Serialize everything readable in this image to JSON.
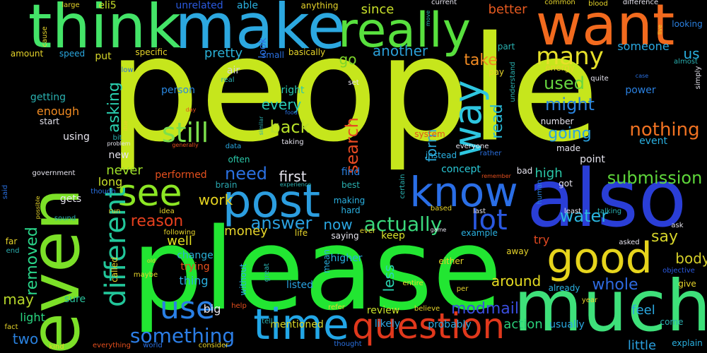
{
  "words": [
    {
      "text": "people",
      "color": "#c6e61c"
    },
    {
      "text": "please",
      "color": "#22e632"
    },
    {
      "text": "make",
      "color": "#2ca8e0"
    },
    {
      "text": "think",
      "color": "#44e468"
    },
    {
      "text": "want",
      "color": "#f26a1e"
    },
    {
      "text": "also",
      "color": "#2a3ed6"
    },
    {
      "text": "much",
      "color": "#3ee07a"
    },
    {
      "text": "really",
      "color": "#58e03e"
    },
    {
      "text": "even",
      "color": "#7ce028"
    },
    {
      "text": "post",
      "color": "#2c9ee0"
    },
    {
      "text": "time",
      "color": "#22a6e6"
    },
    {
      "text": "know",
      "color": "#2a6ee6"
    },
    {
      "text": "question",
      "color": "#e0381c"
    },
    {
      "text": "good",
      "color": "#e6d41c"
    },
    {
      "text": "see",
      "color": "#8ce624"
    },
    {
      "text": "way",
      "color": "#2ec6e0"
    },
    {
      "text": "lot",
      "color": "#2a58e0"
    },
    {
      "text": "use",
      "color": "#2a80e6"
    },
    {
      "text": "still",
      "color": "#7ce04c"
    },
    {
      "text": "many",
      "color": "#e6e02a"
    },
    {
      "text": "different",
      "color": "#22c69a"
    },
    {
      "text": "something",
      "color": "#2c7ee6"
    },
    {
      "text": "actually",
      "color": "#3ad87c"
    },
    {
      "text": "nothing",
      "color": "#f07222"
    },
    {
      "text": "submission",
      "color": "#5ed63a"
    },
    {
      "text": "answer",
      "color": "#2aa0e0"
    },
    {
      "text": "removed",
      "color": "#2ad68a"
    },
    {
      "text": "modmail",
      "color": "#3a4ee0"
    },
    {
      "text": "read",
      "color": "#2ab8d6"
    },
    {
      "text": "search",
      "color": "#e64a22"
    },
    {
      "text": "water",
      "color": "#2ab6e0"
    },
    {
      "text": "might",
      "color": "#2a84e0"
    },
    {
      "text": "used",
      "color": "#66d640"
    },
    {
      "text": "asking",
      "color": "#2ad0b0"
    },
    {
      "text": "whole",
      "color": "#2e6ae0"
    },
    {
      "text": "body",
      "color": "#d6d02a"
    },
    {
      "text": "say",
      "color": "#d6d42a"
    },
    {
      "text": "need",
      "color": "#2a70e0"
    },
    {
      "text": "reason",
      "color": "#e6401e"
    },
    {
      "text": "work",
      "color": "#e6d420"
    },
    {
      "text": "another",
      "color": "#2a9ed6"
    },
    {
      "text": "going",
      "color": "#2aa2e0"
    },
    {
      "text": "back",
      "color": "#b6e02a"
    },
    {
      "text": "every",
      "color": "#2acab6"
    },
    {
      "text": "first",
      "color": "#e6e4ee"
    },
    {
      "text": "take",
      "color": "#f08a22"
    },
    {
      "text": "around",
      "color": "#e6dc22"
    },
    {
      "text": "us",
      "color": "#2ab0e0"
    },
    {
      "text": "go",
      "color": "#7cd62a"
    },
    {
      "text": "pretty",
      "color": "#2ab0d6"
    },
    {
      "text": "form",
      "color": "#2aa6d6"
    },
    {
      "text": "better",
      "color": "#e65a20"
    },
    {
      "text": "since",
      "color": "#c8e02a"
    },
    {
      "text": "someone",
      "color": "#2aa8e0"
    },
    {
      "text": "never",
      "color": "#9ee02a"
    },
    {
      "text": "long",
      "color": "#c8e02a"
    },
    {
      "text": "well",
      "color": "#e6e022"
    },
    {
      "text": "now",
      "color": "#2aa6e0"
    },
    {
      "text": "keep",
      "color": "#d8e02a"
    },
    {
      "text": "less",
      "color": "#2ad6b2"
    },
    {
      "text": "high",
      "color": "#2ac8a8"
    },
    {
      "text": "may",
      "color": "#b6d62a"
    },
    {
      "text": "two",
      "color": "#2a82e0"
    },
    {
      "text": "action",
      "color": "#2ad07a"
    },
    {
      "text": "little",
      "color": "#2aa0e0"
    },
    {
      "text": "feel",
      "color": "#2aa8e0"
    },
    {
      "text": "money",
      "color": "#e6d42a"
    },
    {
      "text": "try",
      "color": "#e64a22"
    },
    {
      "text": "concept",
      "color": "#2ac8d6"
    },
    {
      "text": "review",
      "color": "#c8e02a"
    },
    {
      "text": "likely",
      "color": "#2aa2e0"
    },
    {
      "text": "probably",
      "color": "#2aa8e0"
    },
    {
      "text": "usually",
      "color": "#2aa8e0"
    },
    {
      "text": "mentioned",
      "color": "#d6d62a"
    },
    {
      "text": "listed",
      "color": "#2aa2e0"
    },
    {
      "text": "thing",
      "color": "#2ab0e0"
    },
    {
      "text": "big",
      "color": "#e6e4ee"
    },
    {
      "text": "sure",
      "color": "#2ac09a"
    },
    {
      "text": "light",
      "color": "#2ad680"
    },
    {
      "text": "trying",
      "color": "#e6501e"
    },
    {
      "text": "change",
      "color": "#2ab0d6"
    },
    {
      "text": "performed",
      "color": "#e6501e"
    },
    {
      "text": "enough",
      "color": "#f08a22"
    },
    {
      "text": "person",
      "color": "#2a88e0"
    },
    {
      "text": "right",
      "color": "#2ac8b0"
    },
    {
      "text": "air",
      "color": "#d6d6d6"
    },
    {
      "text": "look",
      "color": "#2a70e0"
    },
    {
      "text": "able",
      "color": "#2ab0e0"
    },
    {
      "text": "unrelated",
      "color": "#2a5ae0"
    },
    {
      "text": "eli5",
      "color": "#c8e02a"
    },
    {
      "text": "large",
      "color": "#e6d42a"
    },
    {
      "text": "anything",
      "color": "#e6d42a"
    },
    {
      "text": "cause",
      "color": "#e6d42a"
    },
    {
      "text": "amount",
      "color": "#e6d42a"
    },
    {
      "text": "speed",
      "color": "#2aa8e0"
    },
    {
      "text": "put",
      "color": "#d6d62a"
    },
    {
      "text": "specific",
      "color": "#e6d42a"
    },
    {
      "text": "small",
      "color": "#2a70e0"
    },
    {
      "text": "basically",
      "color": "#e6d42a"
    },
    {
      "text": "getting",
      "color": "#2ab0b0"
    },
    {
      "text": "start",
      "color": "#e6e4ee"
    },
    {
      "text": "using",
      "color": "#e6e4ee"
    },
    {
      "text": "new",
      "color": "#e6e4ee"
    },
    {
      "text": "often",
      "color": "#2ac8a8"
    },
    {
      "text": "data",
      "color": "#2aa8e0"
    },
    {
      "text": "brain",
      "color": "#2aa8b0"
    },
    {
      "text": "find",
      "color": "#2a80e0"
    },
    {
      "text": "best",
      "color": "#2ab0b0"
    },
    {
      "text": "making",
      "color": "#2ab0e0"
    },
    {
      "text": "hard",
      "color": "#2ab0e0"
    },
    {
      "text": "gets",
      "color": "#e6e4ee"
    },
    {
      "text": "government",
      "color": "#e6e4ee"
    },
    {
      "text": "run",
      "color": "#e6d42a"
    },
    {
      "text": "idea",
      "color": "#e6d42a"
    },
    {
      "text": "following",
      "color": "#e6d42a"
    },
    {
      "text": "sound",
      "color": "#2ab0b0"
    },
    {
      "text": "far",
      "color": "#e6d42a"
    },
    {
      "text": "end",
      "color": "#2ab0b0"
    },
    {
      "text": "called",
      "color": "#e6d42a"
    },
    {
      "text": "maybe",
      "color": "#e6d42a"
    },
    {
      "text": "without",
      "color": "#2ab0e0"
    },
    {
      "text": "great",
      "color": "#2ab0b0"
    },
    {
      "text": "help",
      "color": "#e6501e"
    },
    {
      "text": "tell",
      "color": "#2ab0b0"
    },
    {
      "text": "refer",
      "color": "#e6d42a"
    },
    {
      "text": "believe",
      "color": "#e6d42a"
    },
    {
      "text": "entire",
      "color": "#e6d42a"
    },
    {
      "text": "per",
      "color": "#e6d42a"
    },
    {
      "text": "either",
      "color": "#e6d42a"
    },
    {
      "text": "higher",
      "color": "#2ab0e0"
    },
    {
      "text": "saying",
      "color": "#e6e4ee"
    },
    {
      "text": "life",
      "color": "#e6d42a"
    },
    {
      "text": "ever",
      "color": "#e6d42a"
    },
    {
      "text": "mean",
      "color": "#2ab0e0"
    },
    {
      "text": "example",
      "color": "#2ab0e0"
    },
    {
      "text": "away",
      "color": "#e6d42a"
    },
    {
      "text": "asked",
      "color": "#e6e4ee"
    },
    {
      "text": "already",
      "color": "#2ab0e0"
    },
    {
      "text": "give",
      "color": "#e6d42a"
    },
    {
      "text": "come",
      "color": "#2ab0b0"
    },
    {
      "text": "explain",
      "color": "#2ab0e0"
    },
    {
      "text": "year",
      "color": "#e6d42a"
    },
    {
      "text": "objective",
      "color": "#2a5ae0"
    },
    {
      "text": "ask",
      "color": "#e6e4ee"
    },
    {
      "text": "least",
      "color": "#e6e4ee"
    },
    {
      "text": "talking",
      "color": "#2ab0b0"
    },
    {
      "text": "last",
      "color": "#e6e4ee"
    },
    {
      "text": "based",
      "color": "#e6d42a"
    },
    {
      "text": "got",
      "color": "#e6e4ee"
    },
    {
      "text": "bad",
      "color": "#e6e4ee"
    },
    {
      "text": "point",
      "color": "#e6e4ee"
    },
    {
      "text": "made",
      "color": "#e6e4ee"
    },
    {
      "text": "event",
      "color": "#2ab0e0"
    },
    {
      "text": "human",
      "color": "#2a80e0"
    },
    {
      "text": "remember",
      "color": "#e6501e"
    },
    {
      "text": "rather",
      "color": "#2a70e0"
    },
    {
      "text": "everyone",
      "color": "#e6e4ee"
    },
    {
      "text": "instead",
      "color": "#2ab0e0"
    },
    {
      "text": "system",
      "color": "#e6501e"
    },
    {
      "text": "number",
      "color": "#e6e4ee"
    },
    {
      "text": "understand",
      "color": "#2ab0b0"
    },
    {
      "text": "energy",
      "color": "#e6d42a"
    },
    {
      "text": "pay",
      "color": "#e6d42a"
    },
    {
      "text": "part",
      "color": "#2ab0b0"
    },
    {
      "text": "power",
      "color": "#2a80e0"
    },
    {
      "text": "almost",
      "color": "#2ab0b0"
    },
    {
      "text": "simply",
      "color": "#e6e4ee"
    },
    {
      "text": "case",
      "color": "#2a70e0"
    },
    {
      "text": "live",
      "color": "#e6d42a"
    },
    {
      "text": "quite",
      "color": "#e6e4ee"
    },
    {
      "text": "current",
      "color": "#e6e4ee"
    },
    {
      "text": "common",
      "color": "#e6d42a"
    },
    {
      "text": "blood",
      "color": "#e6d42a"
    },
    {
      "text": "difference",
      "color": "#e6e4ee"
    },
    {
      "text": "looking",
      "color": "#2a80e0"
    },
    {
      "text": "move",
      "color": "#2ab0b0"
    },
    {
      "text": "set",
      "color": "#e6e4ee"
    },
    {
      "text": "real",
      "color": "#2ab0b0"
    },
    {
      "text": "food",
      "color": "#2a70e0"
    },
    {
      "text": "similar",
      "color": "#2ab0b0"
    },
    {
      "text": "taking",
      "color": "#e6e4ee"
    },
    {
      "text": "due",
      "color": "#e6d42a"
    },
    {
      "text": "generally",
      "color": "#e6501e"
    },
    {
      "text": "day",
      "color": "#e6501e"
    },
    {
      "text": "low",
      "color": "#2a70e0"
    },
    {
      "text": "bit",
      "color": "#2ab0b0"
    },
    {
      "text": "problem",
      "color": "#e6e4ee"
    },
    {
      "text": "said",
      "color": "#2a70e0"
    },
    {
      "text": "possible",
      "color": "#e6d42a"
    },
    {
      "text": "though",
      "color": "#2a70e0"
    },
    {
      "text": "experience",
      "color": "#2ab0b0"
    },
    {
      "text": "certain",
      "color": "#2ab0b0"
    },
    {
      "text": "old",
      "color": "#e6d42a"
    },
    {
      "text": "fact",
      "color": "#e6d42a"
    },
    {
      "text": "kind",
      "color": "#e6d42a"
    },
    {
      "text": "everything",
      "color": "#e6501e"
    },
    {
      "text": "world",
      "color": "#2a70e0"
    },
    {
      "text": "consider",
      "color": "#e6d42a"
    },
    {
      "text": "thought",
      "color": "#2a70e0"
    },
    {
      "text": "game",
      "color": "#e6e4ee"
    }
  ]
}
